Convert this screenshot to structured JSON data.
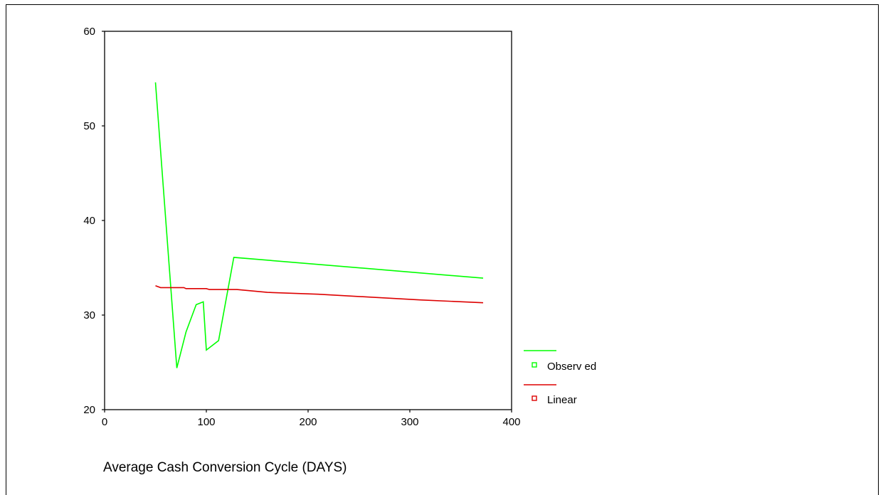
{
  "chart_data": {
    "type": "line",
    "title": "",
    "xlabel": "Average Cash Conversion Cycle (DAYS)",
    "ylabel": "",
    "xlim": [
      0,
      400
    ],
    "ylim": [
      20,
      60
    ],
    "x_ticks": [
      "0",
      "100",
      "200",
      "300",
      "400"
    ],
    "y_ticks": [
      "20",
      "30",
      "40",
      "50",
      "60"
    ],
    "grid": false,
    "legend_position": "right-bottom",
    "series": [
      {
        "name": "Observ ed",
        "color": "#00ff00",
        "points": [
          [
            50,
            54.6
          ],
          [
            71,
            24.4
          ],
          [
            80,
            28.2
          ],
          [
            90,
            31.1
          ],
          [
            97,
            31.4
          ],
          [
            100,
            26.3
          ],
          [
            112,
            27.3
          ],
          [
            127,
            36.1
          ],
          [
            372,
            33.9
          ]
        ]
      },
      {
        "name": "Linear",
        "color": "#dd0000",
        "points": [
          [
            50,
            33.1
          ],
          [
            55,
            32.9
          ],
          [
            78,
            32.9
          ],
          [
            80,
            32.8
          ],
          [
            100,
            32.8
          ],
          [
            103,
            32.7
          ],
          [
            130,
            32.7
          ],
          [
            160,
            32.4
          ],
          [
            210,
            32.2
          ],
          [
            260,
            31.9
          ],
          [
            310,
            31.6
          ],
          [
            372,
            31.3
          ]
        ]
      }
    ]
  }
}
